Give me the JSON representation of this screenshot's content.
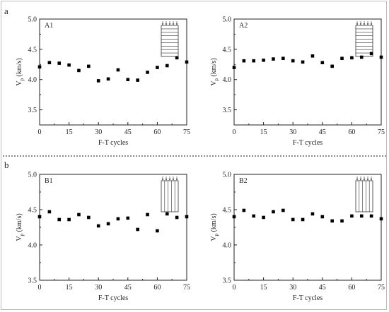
{
  "panel_letters": [
    "a",
    "b"
  ],
  "chart_data": [
    {
      "type": "scatter",
      "tag": "A1",
      "xlabel": "F-T cycles",
      "ylabel": "V",
      "ylabel_sub": "p",
      "ylabel_unit": " (km/s)",
      "xlim": [
        0,
        75
      ],
      "ylim": [
        3.25,
        5.0
      ],
      "xticks": [
        0,
        15,
        30,
        45,
        60,
        75
      ],
      "yticks": [
        3.5,
        4.0,
        4.5,
        5.0
      ],
      "ytick_labels": [
        "3.5",
        "4.0",
        "4.5",
        "5.0"
      ],
      "inset": "horizontal",
      "x": [
        0,
        5,
        10,
        15,
        20,
        25,
        30,
        35,
        40,
        45,
        50,
        55,
        60,
        65,
        70,
        75
      ],
      "y": [
        4.21,
        4.28,
        4.27,
        4.24,
        4.15,
        4.22,
        3.98,
        4.01,
        4.16,
        4.0,
        3.99,
        4.12,
        4.2,
        4.23,
        4.36,
        4.29
      ]
    },
    {
      "type": "scatter",
      "tag": "A2",
      "xlabel": "F-T cycles",
      "ylabel": "V",
      "ylabel_sub": "p",
      "ylabel_unit": " (km/s)",
      "xlim": [
        0,
        75
      ],
      "ylim": [
        3.25,
        5.0
      ],
      "xticks": [
        0,
        15,
        30,
        45,
        60,
        75
      ],
      "yticks": [
        3.5,
        4.0,
        4.5,
        5.0
      ],
      "ytick_labels": [
        "3.5",
        "4.0",
        "4.5",
        "5.0"
      ],
      "inset": "horizontal",
      "x": [
        0,
        5,
        10,
        15,
        20,
        25,
        30,
        35,
        40,
        45,
        50,
        55,
        60,
        65,
        70,
        75
      ],
      "y": [
        4.2,
        4.31,
        4.31,
        4.32,
        4.34,
        4.35,
        4.31,
        4.29,
        4.39,
        4.28,
        4.22,
        4.35,
        4.36,
        4.37,
        4.43,
        4.37
      ]
    },
    {
      "type": "scatter",
      "tag": "B1",
      "xlabel": "F-T cycles",
      "ylabel": "V",
      "ylabel_sub": "p",
      "ylabel_unit": " (km/s)",
      "xlim": [
        0,
        75
      ],
      "ylim": [
        3.5,
        5.0
      ],
      "xticks": [
        0,
        15,
        30,
        45,
        60,
        75
      ],
      "yticks": [
        3.5,
        4.0,
        4.5,
        5.0
      ],
      "ytick_labels": [
        "3.5",
        "4.0",
        "4.5",
        "5.0"
      ],
      "inset": "vertical",
      "x": [
        0,
        5,
        10,
        15,
        20,
        25,
        30,
        35,
        40,
        45,
        50,
        55,
        60,
        65,
        70,
        75
      ],
      "y": [
        4.4,
        4.47,
        4.36,
        4.36,
        4.43,
        4.39,
        4.27,
        4.3,
        4.37,
        4.38,
        4.22,
        4.43,
        4.2,
        4.44,
        4.39,
        4.4
      ]
    },
    {
      "type": "scatter",
      "tag": "B2",
      "xlabel": "F-T cycles",
      "ylabel": "V",
      "ylabel_sub": "p",
      "ylabel_unit": " (km/s)",
      "xlim": [
        0,
        75
      ],
      "ylim": [
        3.5,
        5.0
      ],
      "xticks": [
        0,
        15,
        30,
        45,
        60,
        75
      ],
      "yticks": [
        3.5,
        4.0,
        4.5,
        5.0
      ],
      "ytick_labels": [
        "3.5",
        "4.0",
        "4.5",
        "5.0"
      ],
      "inset": "vertical",
      "x": [
        0,
        5,
        10,
        15,
        20,
        25,
        30,
        35,
        40,
        45,
        50,
        55,
        60,
        65,
        70,
        75
      ],
      "y": [
        4.4,
        4.49,
        4.41,
        4.39,
        4.47,
        4.49,
        4.36,
        4.36,
        4.44,
        4.4,
        4.34,
        4.34,
        4.41,
        4.41,
        4.41,
        4.37
      ]
    }
  ]
}
